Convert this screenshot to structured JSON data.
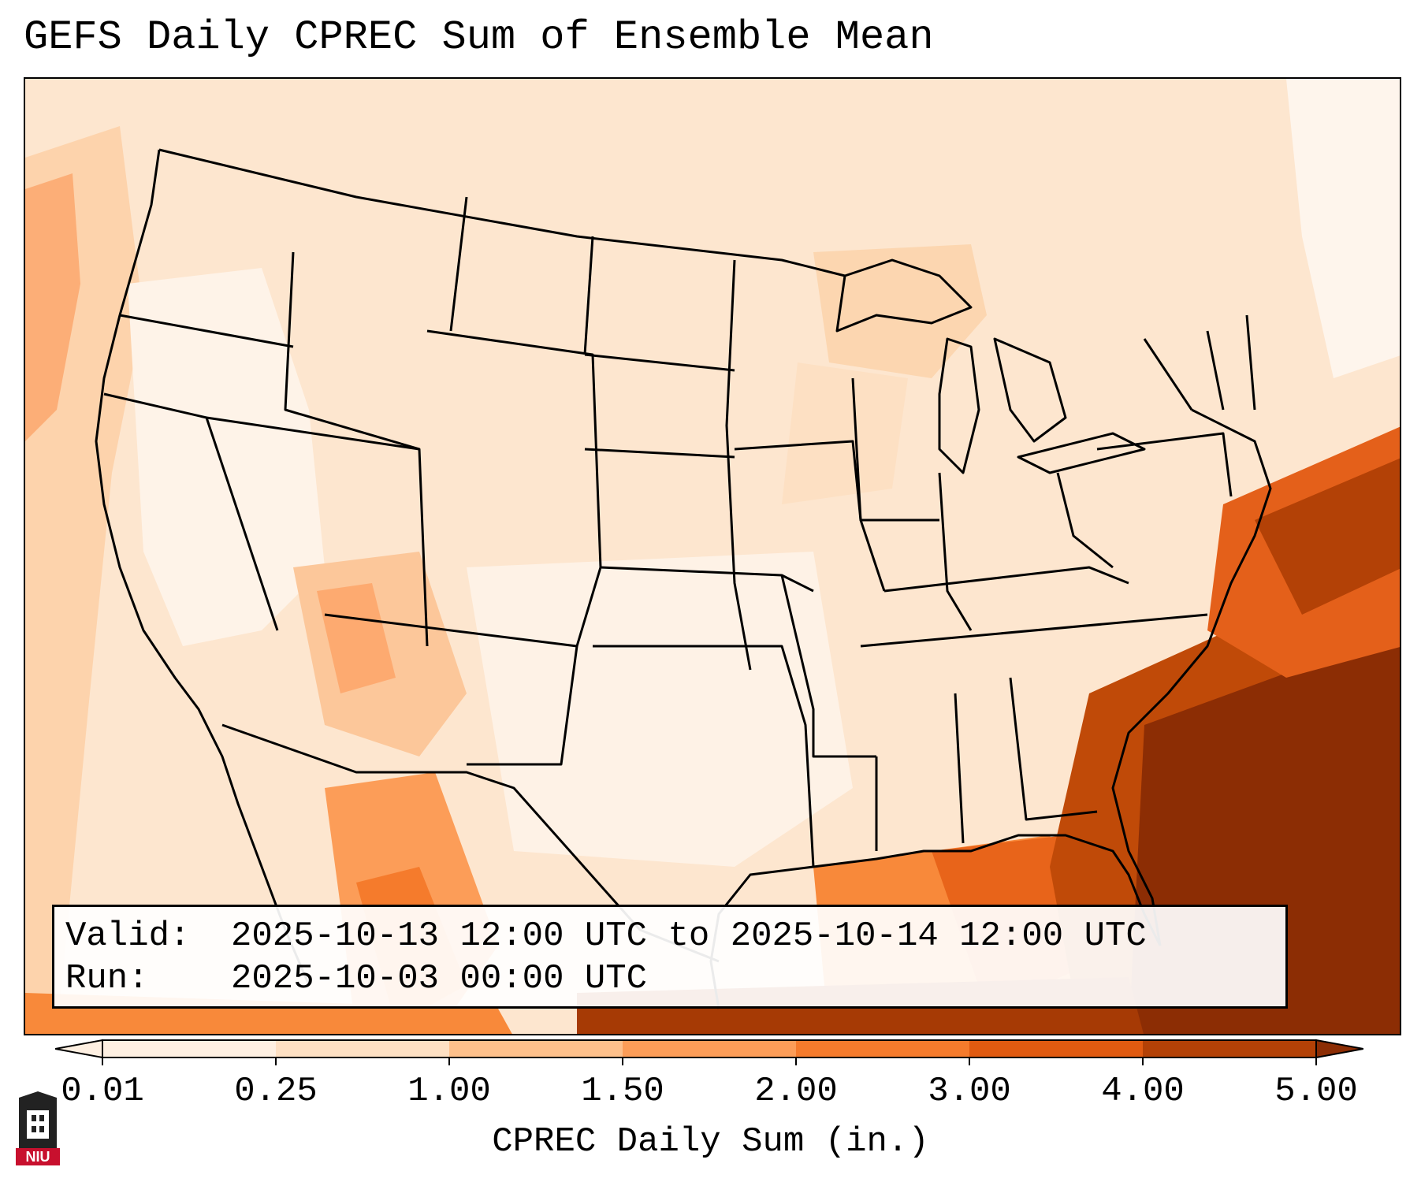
{
  "title": "GEFS Daily CPREC Sum of Ensemble Mean",
  "valid": {
    "label": "Valid:",
    "value": "2025-10-13 12:00 UTC to 2025-10-14 12:00 UTC"
  },
  "run": {
    "label": "Run:",
    "value": "2025-10-03 00:00 UTC"
  },
  "colorbar": {
    "label": "CPREC Daily Sum (in.)",
    "ticks": [
      "0.01",
      "0.25",
      "1.00",
      "1.50",
      "2.00",
      "3.00",
      "4.00",
      "5.00"
    ],
    "colors": [
      "#fef0e2",
      "#fde0c3",
      "#fdc08b",
      "#fc9d58",
      "#f57b2c",
      "#e05a10",
      "#b34106",
      "#8c2d04"
    ]
  },
  "logo": {
    "text": "NIU",
    "color": "#c8102e"
  },
  "map": {
    "projection": "lambert-conformal",
    "region": "CONUS",
    "features": [
      "state-borders",
      "country-borders",
      "coastlines",
      "great-lakes"
    ]
  }
}
